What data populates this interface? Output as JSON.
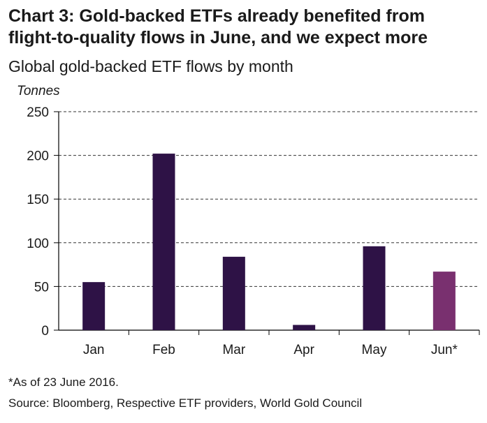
{
  "header": {
    "title_line1": "Chart 3: Gold-backed ETFs already benefited from",
    "title_line2": "flight-to-quality flows in June, and we expect more",
    "subtitle": "Global gold-backed ETF flows by month"
  },
  "footer": {
    "note": "*As of 23 June 2016.",
    "source": "Source: Bloomberg, Respective ETF providers, World Gold Council"
  },
  "chart_data": {
    "type": "bar",
    "title": "Chart 3: Gold-backed ETFs already benefited from flight-to-quality flows in June, and we expect more",
    "subtitle": "Global gold-backed ETF flows by month",
    "ylabel": "Tonnes",
    "xlabel": "",
    "categories": [
      "Jan",
      "Feb",
      "Mar",
      "Apr",
      "May",
      "Jun*"
    ],
    "values": [
      55,
      202,
      84,
      6,
      96,
      67
    ],
    "ylim": [
      0,
      250
    ],
    "yticks": [
      0,
      50,
      100,
      150,
      200,
      250
    ],
    "grid": true,
    "colors": [
      "#2e1246",
      "#2e1246",
      "#2e1246",
      "#2e1246",
      "#2e1246",
      "#79306f"
    ]
  }
}
